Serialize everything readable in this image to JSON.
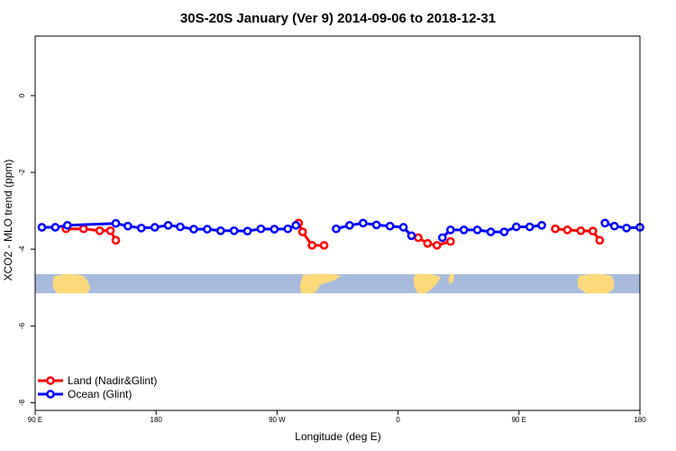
{
  "chart_data": {
    "type": "line",
    "title": "30S-20S January (Ver 9)   2014-09-06 to 2018-12-31",
    "xlabel": "Longitude (deg E)",
    "ylabel": "XCO2 - MLO trend (ppm)",
    "xlim": [
      90,
      540
    ],
    "ylim": [
      -8.2,
      1.55
    ],
    "x_ticks": [
      {
        "value": 90,
        "label": "90 E"
      },
      {
        "value": 180,
        "label": "180"
      },
      {
        "value": 270,
        "label": "90 W"
      },
      {
        "value": 360,
        "label": "0"
      },
      {
        "value": 450,
        "label": "90 E"
      },
      {
        "value": 540,
        "label": "180"
      }
    ],
    "y_ticks": [
      {
        "value": 0,
        "label": "0"
      },
      {
        "value": -2,
        "label": "-2"
      },
      {
        "value": -4,
        "label": "-4"
      },
      {
        "value": -6,
        "label": "-6"
      },
      {
        "value": -8,
        "label": "-8"
      }
    ],
    "legend_position": "bottom-left",
    "land_mask_band": {
      "y_range": [
        -4.65,
        -5.15
      ],
      "ocean_color": "#a8bbdc",
      "land_color": "#fcd97a"
    },
    "series": [
      {
        "name": "Land (Nadir&Glint)",
        "color": "#ff0000",
        "segments": [
          [
            [
              113,
              -3.47
            ],
            [
              126,
              -3.47
            ],
            [
              138,
              -3.52
            ],
            [
              146,
              -3.52
            ],
            [
              150,
              -3.77
            ]
          ],
          [
            [
              286,
              -3.32
            ],
            [
              289,
              -3.55
            ],
            [
              296,
              -3.9
            ],
            [
              305,
              -3.9
            ]
          ],
          [
            [
              375,
              -3.7
            ],
            [
              382,
              -3.85
            ],
            [
              389,
              -3.9
            ],
            [
              399,
              -3.8
            ]
          ],
          [
            [
              477,
              -3.47
            ],
            [
              486,
              -3.5
            ],
            [
              496,
              -3.52
            ],
            [
              505,
              -3.53
            ],
            [
              510,
              -3.77
            ]
          ]
        ]
      },
      {
        "name": "Ocean (Glint)",
        "color": "#0000ff",
        "segments": [
          [
            [
              95,
              -3.43
            ],
            [
              105,
              -3.43
            ],
            [
              114,
              -3.38
            ],
            [
              150,
              -3.33
            ],
            [
              159,
              -3.4
            ],
            [
              169,
              -3.45
            ],
            [
              179,
              -3.43
            ],
            [
              189,
              -3.38
            ],
            [
              198,
              -3.42
            ],
            [
              208,
              -3.48
            ],
            [
              218,
              -3.48
            ],
            [
              228,
              -3.52
            ],
            [
              238,
              -3.52
            ],
            [
              248,
              -3.53
            ],
            [
              258,
              -3.47
            ],
            [
              268,
              -3.48
            ],
            [
              278,
              -3.47
            ],
            [
              284,
              -3.38
            ]
          ],
          [
            [
              314,
              -3.47
            ],
            [
              324,
              -3.38
            ],
            [
              334,
              -3.32
            ],
            [
              344,
              -3.37
            ],
            [
              354,
              -3.4
            ],
            [
              364,
              -3.43
            ],
            [
              370,
              -3.65
            ]
          ],
          [
            [
              393,
              -3.7
            ],
            [
              399,
              -3.5
            ],
            [
              409,
              -3.5
            ],
            [
              419,
              -3.5
            ],
            [
              429,
              -3.55
            ],
            [
              439,
              -3.55
            ],
            [
              448,
              -3.42
            ],
            [
              458,
              -3.42
            ],
            [
              467,
              -3.38
            ]
          ],
          [
            [
              514,
              -3.32
            ],
            [
              521,
              -3.4
            ],
            [
              530,
              -3.45
            ],
            [
              540,
              -3.43
            ]
          ]
        ]
      }
    ]
  }
}
